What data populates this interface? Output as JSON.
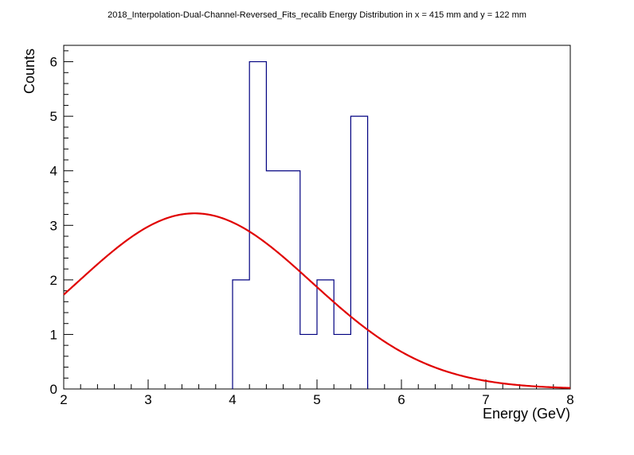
{
  "chart_data": {
    "type": "histogram",
    "title": "2018_Interpolation-Dual-Channel-Reversed_Fits_recalib Energy Distribution in x = 415 mm and y = 122 mm",
    "xlabel": "Energy (GeV)",
    "ylabel": "Counts",
    "xlim": [
      2,
      8
    ],
    "ylim": [
      0,
      6.3
    ],
    "x_ticks": [
      2,
      3,
      4,
      5,
      6,
      7,
      8
    ],
    "y_ticks": [
      0,
      1,
      2,
      3,
      4,
      5,
      6
    ],
    "grid": false,
    "bins": {
      "edges": [
        4.0,
        4.2,
        4.4,
        4.6,
        4.8,
        5.0,
        5.2,
        5.4,
        5.6
      ],
      "counts": [
        2,
        6,
        4,
        4,
        1,
        2,
        1,
        5
      ],
      "color": "#000080"
    },
    "fit": {
      "type": "gaussian",
      "amplitude": 3.22,
      "mean": 3.55,
      "sigma": 1.39,
      "range": [
        2,
        8
      ],
      "color": "#e00000"
    }
  }
}
